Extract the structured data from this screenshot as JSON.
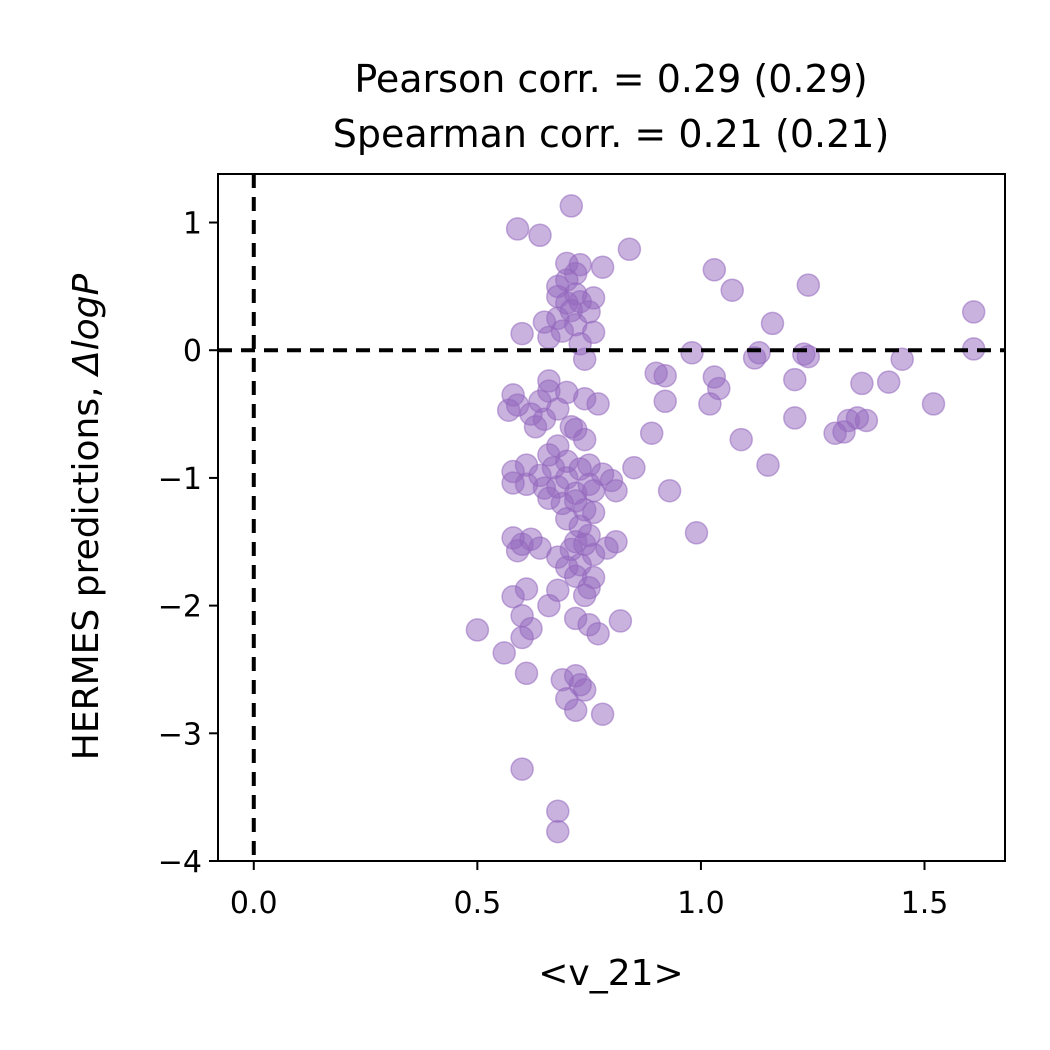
{
  "chart_data": {
    "type": "scatter",
    "title_lines": [
      "Pearson corr. = 0.29 (0.29)",
      "Spearman corr. = 0.21 (0.21)"
    ],
    "xlabel": "<v_21>",
    "ylabel_main": "HERMES predictions, ",
    "ylabel_italic": "ΔlogP",
    "xlim": [
      -0.08,
      1.68
    ],
    "ylim": [
      -4.0,
      1.38
    ],
    "xticks": [
      0.0,
      0.5,
      1.0,
      1.5
    ],
    "xtick_labels": [
      "0.0",
      "0.5",
      "1.0",
      "1.5"
    ],
    "yticks": [
      1,
      0,
      -1,
      -2,
      -3,
      -4
    ],
    "ytick_labels": [
      "1",
      "0",
      "−1",
      "−2",
      "−3",
      "−4"
    ],
    "reference_lines": {
      "x": 0,
      "y": 0
    },
    "grid": false,
    "point_color": "#9467bd",
    "points": [
      [
        0.71,
        1.13
      ],
      [
        0.59,
        0.95
      ],
      [
        0.64,
        0.9
      ],
      [
        0.84,
        0.79
      ],
      [
        0.7,
        0.68
      ],
      [
        0.73,
        0.67
      ],
      [
        0.78,
        0.65
      ],
      [
        0.72,
        0.6
      ],
      [
        0.7,
        0.55
      ],
      [
        0.68,
        0.5
      ],
      [
        1.03,
        0.63
      ],
      [
        1.07,
        0.47
      ],
      [
        1.24,
        0.51
      ],
      [
        0.68,
        0.42
      ],
      [
        0.72,
        0.44
      ],
      [
        0.76,
        0.41
      ],
      [
        0.7,
        0.37
      ],
      [
        0.73,
        0.38
      ],
      [
        0.71,
        0.31
      ],
      [
        0.75,
        0.3
      ],
      [
        0.68,
        0.25
      ],
      [
        0.65,
        0.22
      ],
      [
        0.72,
        0.2
      ],
      [
        0.69,
        0.15
      ],
      [
        0.76,
        0.14
      ],
      [
        0.6,
        0.13
      ],
      [
        0.66,
        0.1
      ],
      [
        0.73,
        0.05
      ],
      [
        1.16,
        0.21
      ],
      [
        1.61,
        0.3
      ],
      [
        1.61,
        0.01
      ],
      [
        0.74,
        -0.07
      ],
      [
        0.98,
        -0.02
      ],
      [
        1.13,
        -0.02
      ],
      [
        1.12,
        -0.06
      ],
      [
        1.23,
        -0.03
      ],
      [
        1.24,
        -0.05
      ],
      [
        1.45,
        -0.07
      ],
      [
        0.9,
        -0.18
      ],
      [
        0.92,
        -0.2
      ],
      [
        1.03,
        -0.21
      ],
      [
        1.21,
        -0.23
      ],
      [
        1.04,
        -0.3
      ],
      [
        1.36,
        -0.26
      ],
      [
        1.42,
        -0.25
      ],
      [
        0.66,
        -0.24
      ],
      [
        0.66,
        -0.32
      ],
      [
        0.7,
        -0.33
      ],
      [
        0.64,
        -0.4
      ],
      [
        0.58,
        -0.35
      ],
      [
        0.57,
        -0.47
      ],
      [
        0.59,
        -0.43
      ],
      [
        0.62,
        -0.5
      ],
      [
        0.65,
        -0.54
      ],
      [
        0.68,
        -0.46
      ],
      [
        0.74,
        -0.38
      ],
      [
        0.77,
        -0.42
      ],
      [
        0.92,
        -0.4
      ],
      [
        1.02,
        -0.42
      ],
      [
        1.52,
        -0.42
      ],
      [
        1.21,
        -0.53
      ],
      [
        1.33,
        -0.55
      ],
      [
        1.35,
        -0.53
      ],
      [
        1.37,
        -0.55
      ],
      [
        1.3,
        -0.65
      ],
      [
        1.32,
        -0.64
      ],
      [
        0.63,
        -0.6
      ],
      [
        0.71,
        -0.6
      ],
      [
        0.72,
        -0.62
      ],
      [
        0.74,
        -0.7
      ],
      [
        0.89,
        -0.65
      ],
      [
        1.09,
        -0.7
      ],
      [
        0.68,
        -0.75
      ],
      [
        0.66,
        -0.82
      ],
      [
        0.7,
        -0.87
      ],
      [
        0.67,
        -0.92
      ],
      [
        0.75,
        -0.9
      ],
      [
        0.73,
        -0.93
      ],
      [
        0.78,
        -0.97
      ],
      [
        1.15,
        -0.9
      ],
      [
        0.85,
        -0.92
      ],
      [
        0.58,
        -0.95
      ],
      [
        0.61,
        -0.9
      ],
      [
        0.64,
        -0.98
      ],
      [
        0.7,
        -1.0
      ],
      [
        0.75,
        -1.05
      ],
      [
        0.58,
        -1.04
      ],
      [
        0.61,
        -1.05
      ],
      [
        0.65,
        -1.08
      ],
      [
        0.68,
        -1.07
      ],
      [
        0.72,
        -1.12
      ],
      [
        0.76,
        -1.1
      ],
      [
        0.8,
        -1.02
      ],
      [
        0.81,
        -1.1
      ],
      [
        0.93,
        -1.1
      ],
      [
        0.66,
        -1.16
      ],
      [
        0.69,
        -1.2
      ],
      [
        0.72,
        -1.18
      ],
      [
        0.74,
        -1.25
      ],
      [
        0.76,
        -1.27
      ],
      [
        0.7,
        -1.32
      ],
      [
        0.73,
        -1.38
      ],
      [
        0.75,
        -1.45
      ],
      [
        0.72,
        -1.5
      ],
      [
        0.74,
        -1.52
      ],
      [
        0.71,
        -1.56
      ],
      [
        0.76,
        -1.6
      ],
      [
        0.79,
        -1.55
      ],
      [
        0.81,
        -1.5
      ],
      [
        0.99,
        -1.43
      ],
      [
        0.58,
        -1.47
      ],
      [
        0.6,
        -1.52
      ],
      [
        0.62,
        -1.48
      ],
      [
        0.64,
        -1.55
      ],
      [
        0.59,
        -1.57
      ],
      [
        0.68,
        -1.62
      ],
      [
        0.7,
        -1.7
      ],
      [
        0.73,
        -1.68
      ],
      [
        0.72,
        -1.77
      ],
      [
        0.76,
        -1.78
      ],
      [
        0.75,
        -1.86
      ],
      [
        0.68,
        -1.88
      ],
      [
        0.61,
        -1.87
      ],
      [
        0.58,
        -1.93
      ],
      [
        0.74,
        -1.92
      ],
      [
        0.66,
        -2.0
      ],
      [
        0.6,
        -2.08
      ],
      [
        0.62,
        -2.18
      ],
      [
        0.6,
        -2.25
      ],
      [
        0.72,
        -2.1
      ],
      [
        0.75,
        -2.15
      ],
      [
        0.77,
        -2.22
      ],
      [
        0.82,
        -2.12
      ],
      [
        0.5,
        -2.19
      ],
      [
        0.56,
        -2.37
      ],
      [
        0.61,
        -2.53
      ],
      [
        0.69,
        -2.58
      ],
      [
        0.72,
        -2.55
      ],
      [
        0.73,
        -2.62
      ],
      [
        0.74,
        -2.66
      ],
      [
        0.7,
        -2.73
      ],
      [
        0.72,
        -2.82
      ],
      [
        0.78,
        -2.85
      ],
      [
        0.6,
        -3.28
      ],
      [
        0.68,
        -3.61
      ],
      [
        0.68,
        -3.77
      ]
    ]
  }
}
